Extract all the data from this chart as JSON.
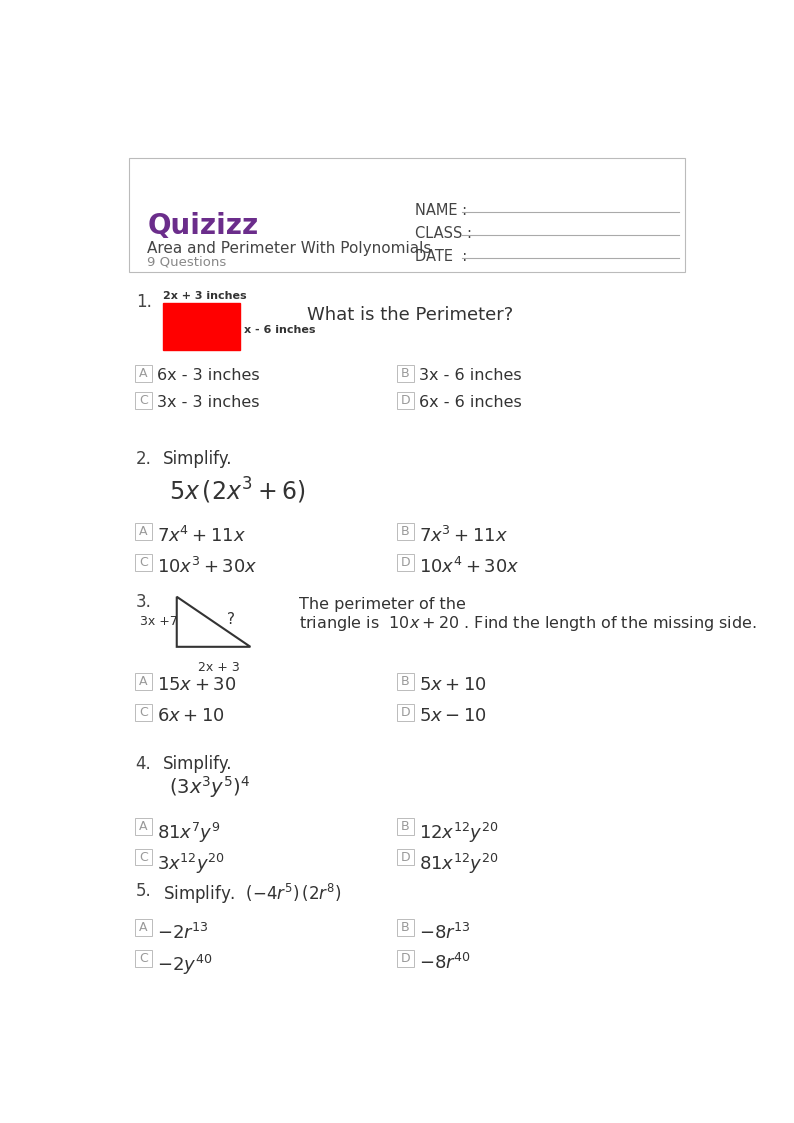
{
  "title": "Area and Perimeter With Polynomials",
  "subtitle": "9 Questions",
  "quizizz_color": "#6B2D8B",
  "bg_color": "#ffffff",
  "questions": [
    {
      "num": "1.",
      "question_text": "What is the Perimeter?",
      "rect_top_label": "2x + 3 inches",
      "rect_right_label": "x - 6 inches",
      "rect_color": "#FF0000",
      "answers": [
        "6x - 3 inches",
        "3x - 6 inches",
        "3x - 3 inches",
        "6x - 6 inches"
      ]
    },
    {
      "num": "2.",
      "simplify_line": "Simplify.",
      "formula": "$5x\\,(2x^3 + 6)$",
      "answers_math": [
        "$7x^4 + 11x$",
        "$7x^3 + 11x$",
        "$10x^3 + 30x$",
        "$10x^4 + 30x$"
      ]
    },
    {
      "num": "3.",
      "triangle_left": "3x +7",
      "triangle_bottom": "2x + 3",
      "answers_math": [
        "$15x + 30$",
        "$5x + 10$",
        "$6x + 10$",
        "$5x - 10$"
      ]
    },
    {
      "num": "4.",
      "simplify_line": "Simplify.",
      "formula": "$(3x^3y^5)^4$",
      "answers_math": [
        "$81x^7y^9$",
        "$12x^{12}y^{20}$",
        "$3x^{12}y^{20}$",
        "$81x^{12}y^{20}$"
      ]
    },
    {
      "num": "5.",
      "simplify_inline": "Simplify.",
      "formula_inline": "$(-4r^5)\\,(2r^8)$",
      "answers_math": [
        "$-2r^{13}$",
        "$-8r^{13}$",
        "$-2y^{40}$",
        "$-8r^{40}$"
      ]
    }
  ]
}
